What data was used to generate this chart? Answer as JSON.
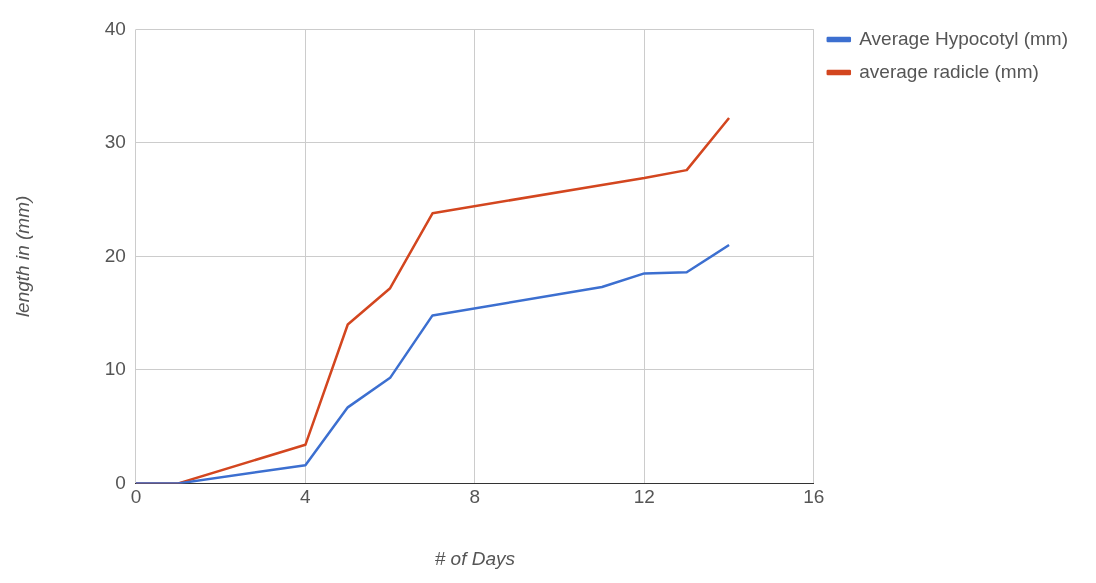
{
  "chart_data": {
    "type": "line",
    "xlabel": "# of Days",
    "ylabel": "length in (mm)",
    "xlim": [
      0,
      16
    ],
    "xticks": [
      0,
      4,
      8,
      12,
      16
    ],
    "ylim": [
      0,
      40
    ],
    "yticks": [
      0,
      10,
      20,
      30,
      40
    ],
    "grid": true,
    "legend": "top right",
    "marker": "none",
    "line_style": "solid",
    "series": [
      {
        "name": "Average Hypocotyl (mm)",
        "color": "#3c6fd0",
        "x": [
          0,
          1,
          4,
          5,
          6,
          7,
          11,
          12,
          13,
          14
        ],
        "values": [
          0,
          0,
          1.6,
          6.7,
          9.3,
          14.8,
          17.3,
          18.5,
          18.6,
          21
        ]
      },
      {
        "name": "average radicle (mm)",
        "color": "#d3461f",
        "x": [
          0,
          1,
          4,
          5,
          6,
          7,
          11,
          12,
          13,
          14
        ],
        "values": [
          0,
          0,
          3.4,
          14,
          17.2,
          23.8,
          26.3,
          26.9,
          27.6,
          32.2
        ]
      }
    ]
  }
}
